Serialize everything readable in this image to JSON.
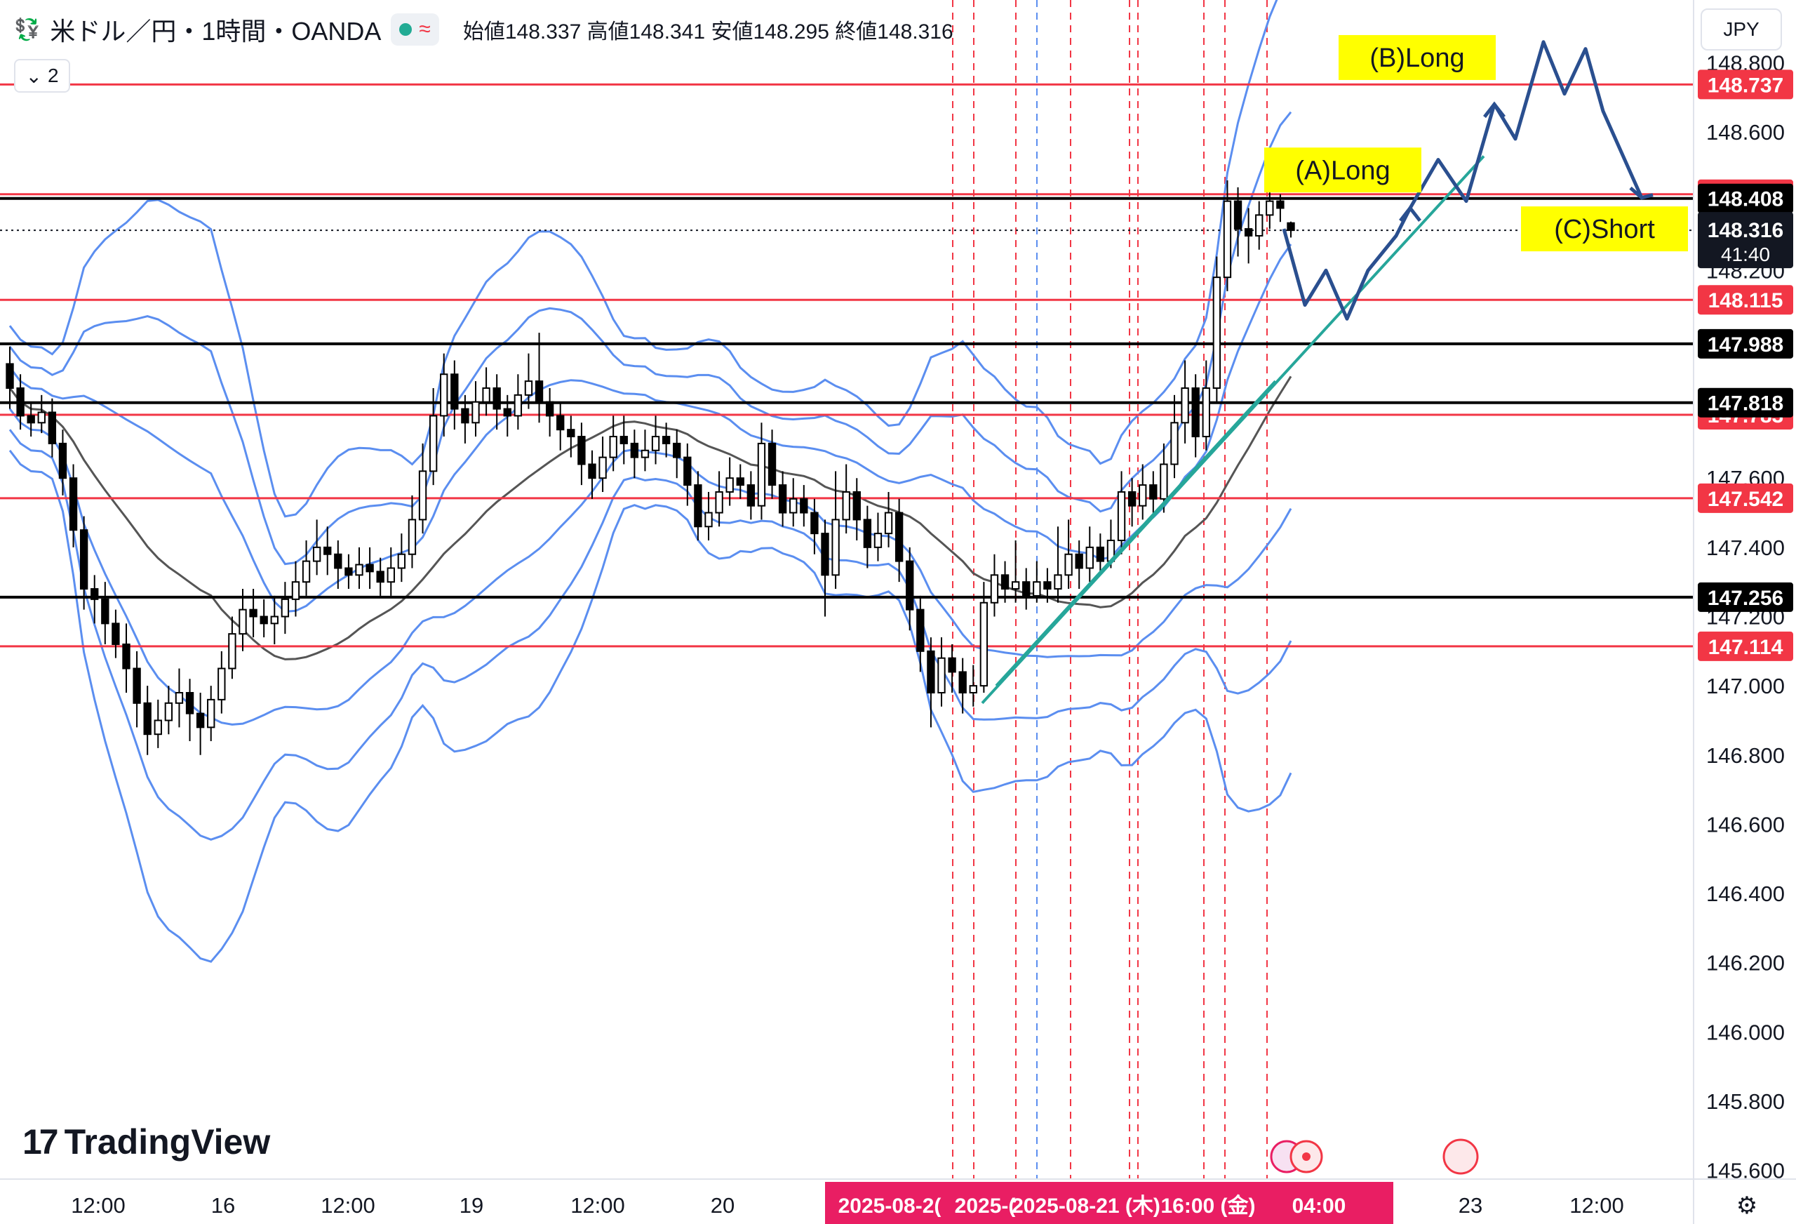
{
  "header": {
    "symbol": "米ドル／円・1時間・OANDA",
    "open_label": "始値148.337",
    "high_label": "高値148.341",
    "low_label": "安値148.295",
    "close_label": "終値148.316"
  },
  "legend_toggle": {
    "label": "2"
  },
  "currency_button": {
    "label": "JPY"
  },
  "brand": {
    "name": "TradingView"
  },
  "colors": {
    "red_line": "#f23645",
    "black_line": "#000000",
    "bollinger": "#5b8ef0",
    "ma": "#555555",
    "trend": "#26a69a",
    "arrow": "#2a4f8f",
    "annotation_bg": "#ffff00",
    "date_bar": "#e91e63"
  },
  "chart_data": {
    "type": "candlestick",
    "title": "米ドル／円・1時間・OANDA",
    "ylim": [
      145.55,
      148.9
    ],
    "y_ticks": [
      "148.800",
      "148.600",
      "148.400",
      "148.200",
      "147.600",
      "147.400",
      "147.200",
      "147.000",
      "146.800",
      "146.600",
      "146.400",
      "146.200",
      "146.000",
      "145.800",
      "145.600"
    ],
    "x_ticks": [
      "12:00",
      "16",
      "12:00",
      "19",
      "12:00",
      "20",
      "23",
      "12:00"
    ],
    "date_bar": [
      "2025-08-2(",
      "2025-(",
      "2025-08-21 (木)",
      "16:00 (金)",
      "04:00"
    ],
    "grid": false,
    "red_levels": [
      {
        "price": 148.737,
        "label": "148.737"
      },
      {
        "price": 148.42,
        "label": "148.420"
      },
      {
        "price": 148.115,
        "label": "148.115"
      },
      {
        "price": 147.783,
        "label": "147.783"
      },
      {
        "price": 147.542,
        "label": "147.542"
      },
      {
        "price": 147.114,
        "label": "147.114"
      }
    ],
    "black_levels": [
      {
        "price": 148.408,
        "label": "148.408"
      },
      {
        "price": 147.988,
        "label": "147.988"
      },
      {
        "price": 147.818,
        "label": "147.818"
      },
      {
        "price": 147.256,
        "label": "147.256"
      }
    ],
    "current_price": {
      "price": 148.316,
      "label": "148.316",
      "countdown": "41:40"
    },
    "annotations": [
      {
        "text": "(A)Long",
        "price": 148.49
      },
      {
        "text": "(B)Long",
        "price": 148.815
      },
      {
        "text": "(C)Short",
        "price": 148.32
      }
    ],
    "candles": [
      [
        147.93,
        147.86,
        147.98,
        147.8
      ],
      [
        147.86,
        147.78,
        147.9,
        147.74
      ],
      [
        147.78,
        147.76,
        147.82,
        147.72
      ],
      [
        147.76,
        147.79,
        147.84,
        147.73
      ],
      [
        147.79,
        147.7,
        147.83,
        147.66
      ],
      [
        147.7,
        147.6,
        147.74,
        147.55
      ],
      [
        147.6,
        147.45,
        147.64,
        147.4
      ],
      [
        147.45,
        147.28,
        147.49,
        147.22
      ],
      [
        147.28,
        147.25,
        147.32,
        147.18
      ],
      [
        147.25,
        147.18,
        147.3,
        147.12
      ],
      [
        147.18,
        147.12,
        147.22,
        147.08
      ],
      [
        147.12,
        147.05,
        147.18,
        146.98
      ],
      [
        147.05,
        146.95,
        147.1,
        146.88
      ],
      [
        146.95,
        146.86,
        147.0,
        146.8
      ],
      [
        146.86,
        146.9,
        146.96,
        146.82
      ],
      [
        146.9,
        146.95,
        147.0,
        146.86
      ],
      [
        146.95,
        146.98,
        147.05,
        146.88
      ],
      [
        146.98,
        146.92,
        147.02,
        146.84
      ],
      [
        146.92,
        146.88,
        146.98,
        146.8
      ],
      [
        146.88,
        146.96,
        147.0,
        146.84
      ],
      [
        146.96,
        147.05,
        147.1,
        146.92
      ],
      [
        147.05,
        147.15,
        147.2,
        147.02
      ],
      [
        147.15,
        147.22,
        147.28,
        147.1
      ],
      [
        147.22,
        147.2,
        147.28,
        147.14
      ],
      [
        147.2,
        147.18,
        147.25,
        147.14
      ],
      [
        147.18,
        147.2,
        147.26,
        147.12
      ],
      [
        147.2,
        147.25,
        147.3,
        147.15
      ],
      [
        147.25,
        147.3,
        147.36,
        147.2
      ],
      [
        147.3,
        147.36,
        147.42,
        147.26
      ],
      [
        147.36,
        147.4,
        147.48,
        147.32
      ],
      [
        147.4,
        147.38,
        147.46,
        147.32
      ],
      [
        147.38,
        147.34,
        147.42,
        147.28
      ],
      [
        147.34,
        147.32,
        147.38,
        147.28
      ],
      [
        147.32,
        147.35,
        147.4,
        147.28
      ],
      [
        147.35,
        147.33,
        147.4,
        147.28
      ],
      [
        147.33,
        147.3,
        147.37,
        147.26
      ],
      [
        147.3,
        147.34,
        147.4,
        147.26
      ],
      [
        147.34,
        147.38,
        147.44,
        147.3
      ],
      [
        147.38,
        147.48,
        147.55,
        147.34
      ],
      [
        147.48,
        147.62,
        147.7,
        147.44
      ],
      [
        147.62,
        147.78,
        147.86,
        147.58
      ],
      [
        147.78,
        147.9,
        147.96,
        147.72
      ],
      [
        147.9,
        147.8,
        147.94,
        147.74
      ],
      [
        147.8,
        147.76,
        147.84,
        147.7
      ],
      [
        147.76,
        147.82,
        147.88,
        147.72
      ],
      [
        147.82,
        147.86,
        147.92,
        147.78
      ],
      [
        147.86,
        147.8,
        147.9,
        147.74
      ],
      [
        147.8,
        147.78,
        147.84,
        147.72
      ],
      [
        147.78,
        147.84,
        147.9,
        147.74
      ],
      [
        147.84,
        147.88,
        147.96,
        147.8
      ],
      [
        147.88,
        147.82,
        148.02,
        147.76
      ],
      [
        147.82,
        147.78,
        147.86,
        147.72
      ],
      [
        147.78,
        147.74,
        147.82,
        147.68
      ],
      [
        147.74,
        147.72,
        147.78,
        147.66
      ],
      [
        147.72,
        147.64,
        147.76,
        147.58
      ],
      [
        147.64,
        147.6,
        147.68,
        147.54
      ],
      [
        147.6,
        147.66,
        147.72,
        147.56
      ],
      [
        147.66,
        147.72,
        147.78,
        147.62
      ],
      [
        147.72,
        147.7,
        147.78,
        147.64
      ],
      [
        147.7,
        147.66,
        147.74,
        147.6
      ],
      [
        147.66,
        147.68,
        147.74,
        147.62
      ],
      [
        147.68,
        147.72,
        147.78,
        147.64
      ],
      [
        147.72,
        147.7,
        147.76,
        147.66
      ],
      [
        147.7,
        147.66,
        147.74,
        147.6
      ],
      [
        147.66,
        147.58,
        147.7,
        147.52
      ],
      [
        147.58,
        147.46,
        147.62,
        147.42
      ],
      [
        147.46,
        147.5,
        147.56,
        147.42
      ],
      [
        147.5,
        147.56,
        147.62,
        147.46
      ],
      [
        147.56,
        147.6,
        147.66,
        147.52
      ],
      [
        147.6,
        147.58,
        147.64,
        147.54
      ],
      [
        147.58,
        147.52,
        147.62,
        147.48
      ],
      [
        147.52,
        147.7,
        147.76,
        147.48
      ],
      [
        147.7,
        147.58,
        147.74,
        147.54
      ],
      [
        147.58,
        147.5,
        147.62,
        147.46
      ],
      [
        147.5,
        147.54,
        147.6,
        147.46
      ],
      [
        147.54,
        147.5,
        147.58,
        147.46
      ],
      [
        147.5,
        147.44,
        147.54,
        147.38
      ],
      [
        147.44,
        147.32,
        147.48,
        147.2
      ],
      [
        147.32,
        147.48,
        147.62,
        147.28
      ],
      [
        147.48,
        147.56,
        147.64,
        147.44
      ],
      [
        147.56,
        147.48,
        147.6,
        147.42
      ],
      [
        147.48,
        147.4,
        147.52,
        147.34
      ],
      [
        147.4,
        147.44,
        147.5,
        147.36
      ],
      [
        147.44,
        147.5,
        147.56,
        147.4
      ],
      [
        147.5,
        147.36,
        147.54,
        147.3
      ],
      [
        147.36,
        147.22,
        147.4,
        147.16
      ],
      [
        147.22,
        147.1,
        147.26,
        147.04
      ],
      [
        147.1,
        146.98,
        147.14,
        146.88
      ],
      [
        146.98,
        147.08,
        147.14,
        146.94
      ],
      [
        147.08,
        147.04,
        147.12,
        146.98
      ],
      [
        147.04,
        146.98,
        147.08,
        146.92
      ],
      [
        146.98,
        147.0,
        147.06,
        146.94
      ],
      [
        147.0,
        147.24,
        147.3,
        146.98
      ],
      [
        147.24,
        147.32,
        147.38,
        147.2
      ],
      [
        147.32,
        147.28,
        147.36,
        147.24
      ],
      [
        147.28,
        147.3,
        147.42,
        147.24
      ],
      [
        147.3,
        147.26,
        147.34,
        147.22
      ],
      [
        147.26,
        147.3,
        147.36,
        147.24
      ],
      [
        147.3,
        147.28,
        147.34,
        147.24
      ],
      [
        147.28,
        147.32,
        147.46,
        147.24
      ],
      [
        147.32,
        147.38,
        147.48,
        147.28
      ],
      [
        147.38,
        147.34,
        147.42,
        147.28
      ],
      [
        147.34,
        147.4,
        147.46,
        147.3
      ],
      [
        147.4,
        147.36,
        147.44,
        147.32
      ],
      [
        147.36,
        147.42,
        147.48,
        147.34
      ],
      [
        147.42,
        147.56,
        147.62,
        147.38
      ],
      [
        147.56,
        147.52,
        147.6,
        147.46
      ],
      [
        147.52,
        147.58,
        147.64,
        147.48
      ],
      [
        147.58,
        147.54,
        147.62,
        147.5
      ],
      [
        147.54,
        147.64,
        147.7,
        147.5
      ],
      [
        147.64,
        147.76,
        147.84,
        147.6
      ],
      [
        147.76,
        147.86,
        147.94,
        147.7
      ],
      [
        147.86,
        147.72,
        147.9,
        147.66
      ],
      [
        147.72,
        147.86,
        147.94,
        147.68
      ],
      [
        147.86,
        148.18,
        148.24,
        147.82
      ],
      [
        148.18,
        148.4,
        148.46,
        148.14
      ],
      [
        148.4,
        148.32,
        148.44,
        148.24
      ],
      [
        148.32,
        148.3,
        148.38,
        148.22
      ],
      [
        148.3,
        148.36,
        148.4,
        148.26
      ],
      [
        148.36,
        148.4,
        148.44,
        148.32
      ],
      [
        148.4,
        148.38,
        148.42,
        148.34
      ],
      [
        148.337,
        148.316,
        148.341,
        148.295
      ]
    ]
  }
}
